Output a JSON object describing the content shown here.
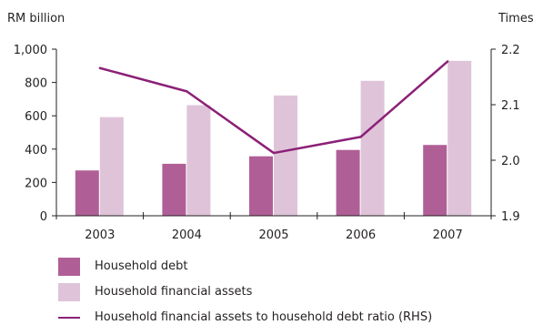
{
  "chart_data": {
    "type": "bar",
    "left_axis_label": "RM billion",
    "right_axis_label": "Times",
    "categories": [
      "2003",
      "2004",
      "2005",
      "2006",
      "2007"
    ],
    "y_left": {
      "range": [
        0,
        1000
      ],
      "ticks": [
        "0",
        "200",
        "400",
        "600",
        "800",
        "1,000"
      ],
      "tick_values": [
        0,
        200,
        400,
        600,
        800,
        1000
      ]
    },
    "y_right": {
      "range": [
        1.9,
        2.2
      ],
      "ticks": [
        "1.9",
        "2.0",
        "2.1",
        "2.2"
      ],
      "tick_values": [
        1.9,
        2.0,
        2.1,
        2.2
      ]
    },
    "series": [
      {
        "name": "Household debt",
        "type": "bar",
        "axis": "left",
        "color": "#b05f96",
        "values": [
          272,
          312,
          357,
          395,
          425
        ]
      },
      {
        "name": "Household financial assets",
        "type": "bar",
        "axis": "left",
        "color": "#dfc4d9",
        "values": [
          592,
          664,
          722,
          810,
          930
        ]
      },
      {
        "name": "Household financial assets to household debt ratio (RHS)",
        "type": "line",
        "axis": "right",
        "color": "#8c2077",
        "values": [
          2.166,
          2.124,
          2.013,
          2.042,
          2.178
        ]
      }
    ],
    "grid": false,
    "legend_position": "bottom"
  }
}
